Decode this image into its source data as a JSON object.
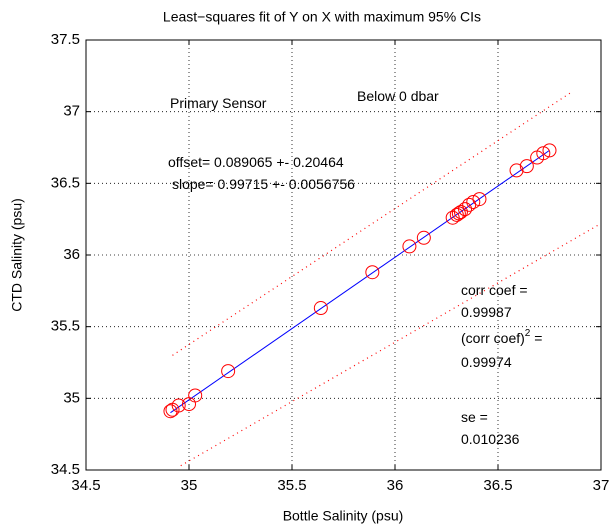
{
  "chart_data": {
    "type": "scatter",
    "title": "Least−squares fit of Y on X with maximum 95% CIs",
    "xlabel": "Bottle Salinity (psu)",
    "ylabel": "CTD Salinity (psu)",
    "xlim": [
      34.5,
      37
    ],
    "ylim": [
      34.5,
      37.5
    ],
    "xticks": [
      34.5,
      35,
      35.5,
      36,
      36.5,
      37
    ],
    "yticks": [
      34.5,
      35,
      35.5,
      36,
      36.5,
      37,
      37.5
    ],
    "grid": true,
    "color": "#ff0000",
    "x": [
      34.91,
      34.92,
      34.95,
      35.0,
      35.03,
      35.19,
      35.64,
      35.89,
      36.07,
      36.14,
      36.28,
      36.3,
      36.31,
      36.32,
      36.34,
      36.36,
      36.38,
      36.41,
      36.59,
      36.64,
      36.69,
      36.72,
      36.75
    ],
    "values": [
      34.91,
      34.92,
      34.95,
      34.96,
      35.02,
      35.19,
      35.63,
      35.88,
      36.06,
      36.12,
      36.26,
      36.28,
      36.29,
      36.3,
      36.32,
      36.35,
      36.37,
      36.39,
      36.59,
      36.62,
      36.68,
      36.71,
      36.73
    ],
    "lines": [
      {
        "color": "#0000ff",
        "style": "solid",
        "x": [
          34.91,
          36.75
        ],
        "values": [
          34.9,
          36.73
        ]
      },
      {
        "color": "#ff0000",
        "style": "dotted",
        "x": [
          34.92,
          36.85
        ],
        "values": [
          35.3,
          37.13
        ]
      },
      {
        "color": "#ff0000",
        "style": "dotted",
        "x": [
          34.96,
          37.0
        ],
        "values": [
          34.53,
          36.22
        ]
      }
    ],
    "annotations": [
      {
        "text": "Primary Sensor"
      },
      {
        "text": "Below 0 dbar"
      },
      {
        "text": "offset= 0.089065  +-  0.20464"
      },
      {
        "text": "slope= 0.99715  +-  0.0056756"
      },
      {
        "text": "corr coef ="
      },
      {
        "text": "0.99987"
      },
      {
        "text": "(corr coef)",
        "sup": "2",
        "after": " ="
      },
      {
        "text": "0.99974"
      },
      {
        "text": "se ="
      },
      {
        "text": "0.010236"
      }
    ]
  }
}
